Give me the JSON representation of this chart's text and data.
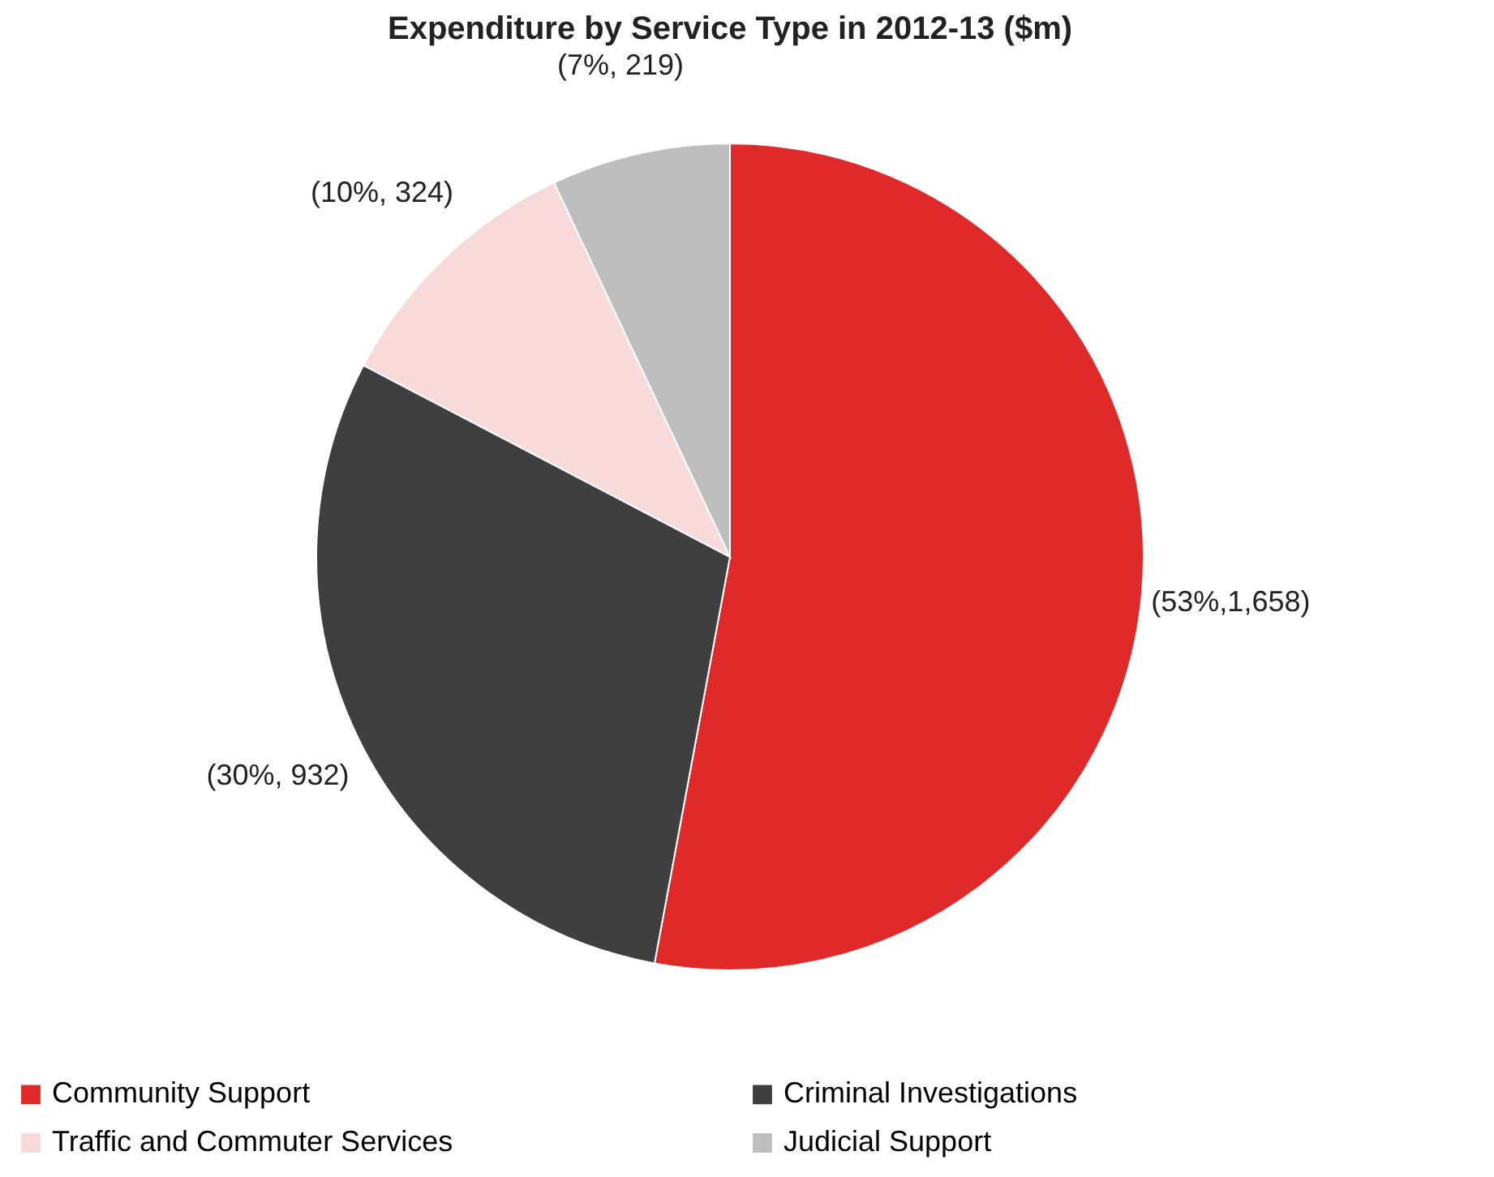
{
  "chart_data": {
    "type": "pie",
    "title": "Expenditure by Service Type in 2012-13 ($m)",
    "categories": [
      "Community Support",
      "Criminal Investigations",
      "Traffic and Commuter Services",
      "Judicial Support"
    ],
    "values": [
      1658,
      932,
      324,
      219
    ],
    "colors": [
      "#e02a2a",
      "#3f3f3f",
      "#f9dada",
      "#bebebe"
    ],
    "value_labels": [
      "(53%,1,658)",
      "(30%, 932)",
      "(10%, 324)",
      "(7%, 219)"
    ],
    "legend": "bottom"
  }
}
